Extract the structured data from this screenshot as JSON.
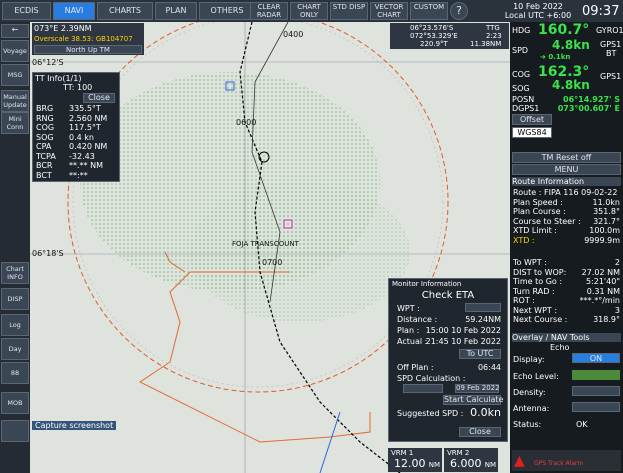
{
  "top_bar": {
    "tabs": [
      "ECDIS",
      "NAVI",
      "CHARTS",
      "PLAN",
      "OTHERS"
    ],
    "active_tab": 1,
    "buttons": [
      "CLEAR RADAR",
      "CHART ONLY",
      "STD DISP",
      "VECTOR CHART",
      "CUSTOM"
    ],
    "date": "10 Feb 2022",
    "utc": "Local UTC +6:00",
    "time": "09:37"
  },
  "sidebar": [
    "Voyage",
    "MSG",
    "Manual Update",
    "Mini Conn",
    "Chart INFO",
    "DISP",
    "Log",
    "Day",
    "88",
    "MOB"
  ],
  "chart_header": {
    "lon": "073°E",
    "range": "2.39NM",
    "overscale": "Overscale 38.53: GB104707",
    "orientation": "North Up TM"
  },
  "cursor": {
    "lat": "06°23.576'S",
    "lon": "072°53.329'E",
    "brg": "220.9°T",
    "rng": "11.38NM",
    "ttg_label": "TTG",
    "ttg": "2:23"
  },
  "chart_labels": {
    "lat1": "06°12'S",
    "lat2": "06°18'S",
    "t1": "0400",
    "t2": "0600",
    "t3": "0700",
    "wreck": "FOJA TRANSCOUNT",
    "tip": "Capture screenshot"
  },
  "tt_info": {
    "title": "TT Info(1/1)",
    "tt": "TT: 100",
    "close": "Close",
    "rows": [
      [
        "BRG",
        "335.5°T"
      ],
      [
        "RNG",
        "2.560 NM"
      ],
      [
        "COG",
        "117.5°T"
      ],
      [
        "SOG",
        "0.4 kn"
      ],
      [
        "CPA",
        "0.420 NM"
      ],
      [
        "TCPA",
        "-32.43"
      ],
      [
        "BCR",
        "**.** NM"
      ],
      [
        "BCT",
        "**:**"
      ]
    ]
  },
  "monitor": {
    "title": "Monitor Information",
    "heading": "Check ETA",
    "wpt": "WPT :",
    "rows": [
      [
        "Distance :",
        "59.24NM"
      ],
      [
        "Plan :",
        "15:00 10 Feb 2022"
      ],
      [
        "Actual :",
        "21:45 10 Feb 2022"
      ]
    ],
    "to_utc": "To UTC",
    "off_plan": [
      "Off Plan :",
      "06:44"
    ],
    "spd_calc": "SPD Calculation :",
    "calc_date": "09 Feb 2022",
    "start": "Start Calculate",
    "suggested": [
      "Suggested SPD :",
      "0.0kn"
    ],
    "close": "Close"
  },
  "vrm": [
    [
      "VRM 1",
      "12.00",
      "NM"
    ],
    [
      "VRM 2",
      "6.000",
      "NM"
    ]
  ],
  "nav": {
    "hdg": [
      "HDG",
      "160.7°",
      "GYRO1"
    ],
    "spd": [
      "SPD",
      "4.8kn",
      "GPS1",
      "BT"
    ],
    "drift": "0.1kn",
    "cog": [
      "COG",
      "162.3°",
      "GPS1"
    ],
    "sog": [
      "SOG",
      "4.8kn"
    ],
    "posn": [
      "POSN",
      "06°14.927' S"
    ],
    "dgps": [
      "DGPS1",
      "073°00.607' E"
    ],
    "offset": "Offset",
    "datum": "WGS84",
    "tm_reset": "TM Reset off",
    "menu": "MENU"
  },
  "route": {
    "title": "Route Information",
    "rows": [
      "Route : FIPA 116 09-02-22",
      [
        "Plan Speed :",
        "11.0kn"
      ],
      [
        "Plan Course :",
        "351.8°"
      ],
      [
        "Course to Steer :",
        "321.7°"
      ],
      [
        "XTD Limit :",
        "100.0m"
      ],
      [
        "XTD :",
        "9999.9m"
      ]
    ],
    "rows2": [
      [
        "To WPT :",
        "2"
      ],
      [
        "DIST to WOP:",
        "27.02 NM"
      ],
      [
        "Time to Go :",
        "5:21'40\""
      ],
      [
        "Turn RAD :",
        "0.31 NM"
      ],
      [
        "ROT :",
        "***.*°/min"
      ],
      [
        "Next WPT :",
        "3"
      ],
      [
        "Next Course :",
        "318.9°"
      ]
    ]
  },
  "overlay": {
    "title": "Overlay / NAV Tools",
    "echo": "Echo",
    "display": [
      "Display:",
      "ON"
    ],
    "level": "Echo Level:",
    "density": "Density:",
    "antenna": "Antenna:",
    "status": [
      "Status:",
      "OK"
    ]
  },
  "alarm": "GPS Track Alarm"
}
